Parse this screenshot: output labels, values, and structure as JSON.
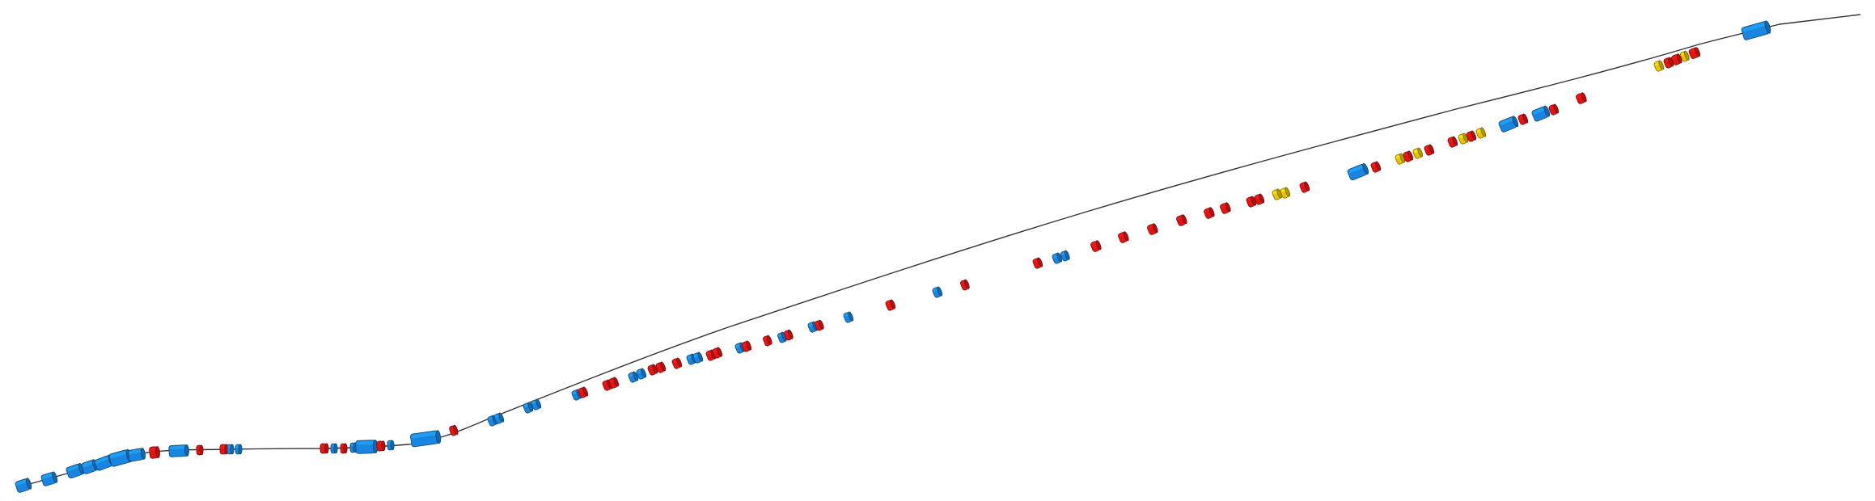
{
  "diagram": {
    "type": "beamline-3d-view",
    "colors": {
      "background": "#ffffff",
      "line": "#333333",
      "dipole": "#1a85e0",
      "quadrupole": "#e51414",
      "sextupole": "#e8c400"
    },
    "element_kinds": [
      "dipole",
      "quadrupole",
      "sextupole"
    ]
  }
}
